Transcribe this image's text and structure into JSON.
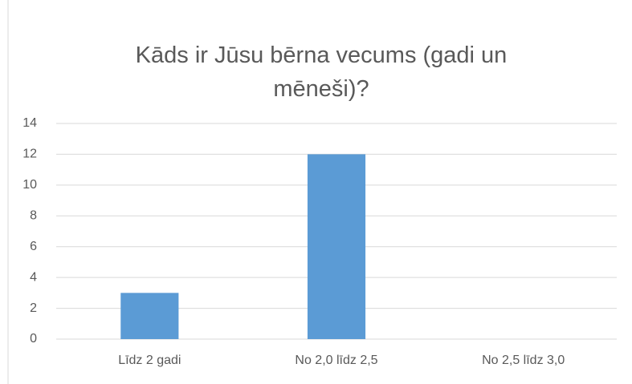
{
  "chart_data": {
    "type": "bar",
    "title": "Kāds ir Jūsu bērna vecums (gadi un mēneši)?",
    "categories": [
      "Līdz 2 gadi",
      "No 2,0 līdz 2,5",
      "No 2,5 līdz 3,0"
    ],
    "values": [
      3,
      12,
      0
    ],
    "color": "#5b9bd5",
    "ylim": [
      0,
      14
    ],
    "yticks": [
      0,
      2,
      4,
      6,
      8,
      10,
      12,
      14
    ],
    "grid": true
  }
}
